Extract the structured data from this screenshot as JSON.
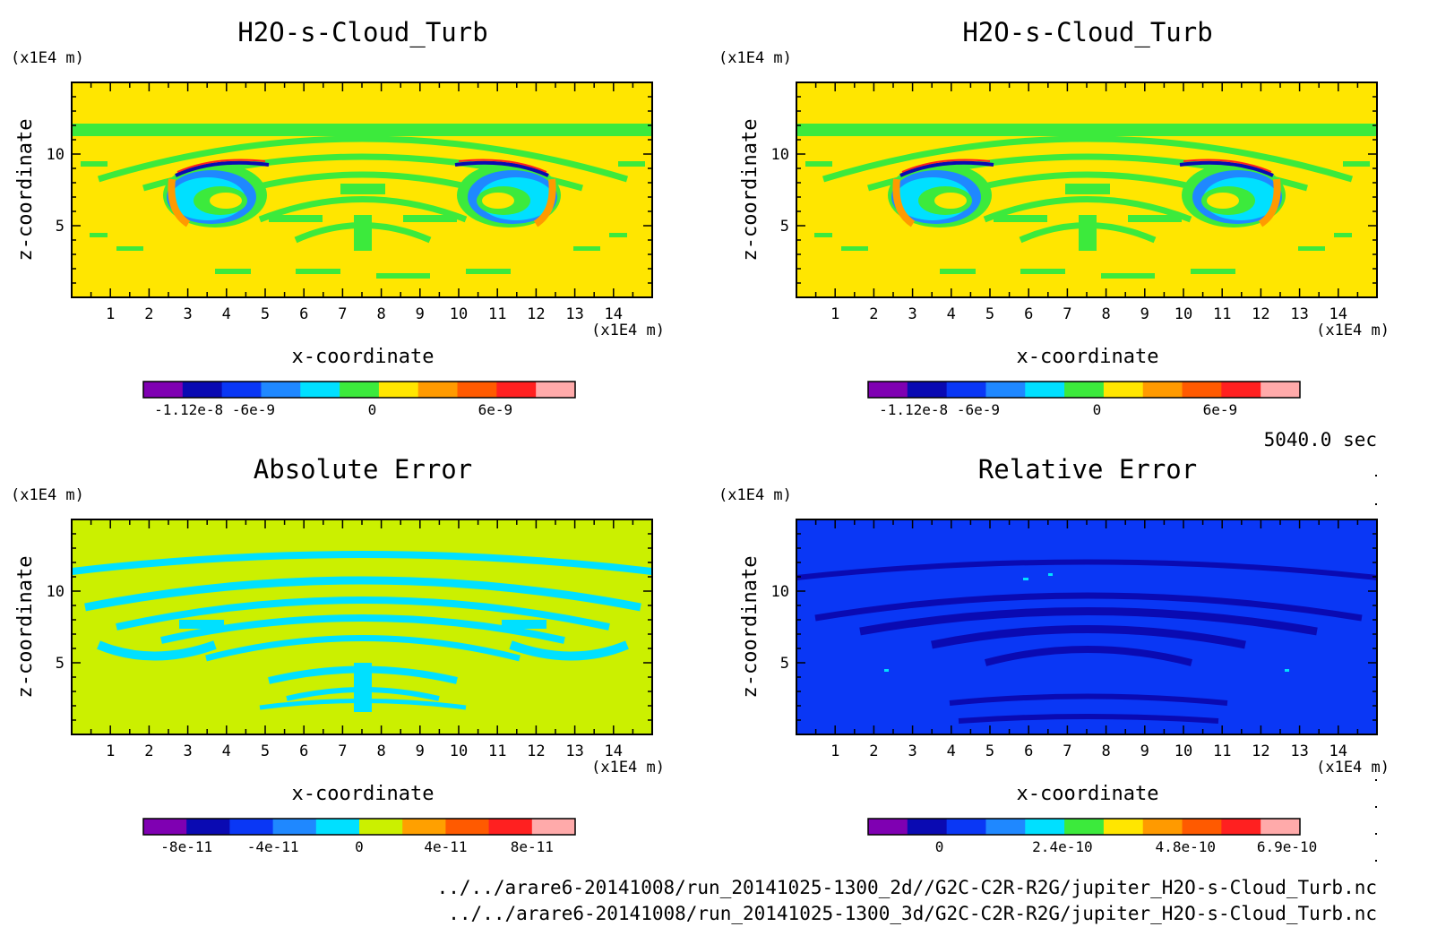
{
  "time_label": "5040.0 sec",
  "files": [
    "../../arare6-20141008/run_20141025-1300_2d//G2C-C2R-R2G/jupiter_H2O-s-Cloud_Turb.nc",
    "../../arare6-20141008/run_20141025-1300_3d/G2C-C2R-R2G/jupiter_H2O-s-Cloud_Turb.nc"
  ],
  "chart_data": [
    {
      "type": "heatmap",
      "title": "H2O-s-Cloud_Turb",
      "xlabel": "x-coordinate",
      "ylabel": "z-coordinate",
      "x_unit": "(x1E4 m)",
      "y_unit": "(x1E4 m)",
      "xlim": [
        0,
        15
      ],
      "ylim": [
        0,
        15
      ],
      "x_ticks": [
        1,
        2,
        3,
        4,
        5,
        6,
        7,
        8,
        9,
        10,
        11,
        12,
        13,
        14
      ],
      "y_ticks": [
        5,
        10
      ],
      "background_color": "#ffe600",
      "colorbar": {
        "colors": [
          "#7f00b2",
          "#0a0ab2",
          "#0a37f5",
          "#1f88ff",
          "#00e0ff",
          "#3cea3c",
          "#ffe600",
          "#ff9a00",
          "#ff5a00",
          "#ff2020",
          "#ffaaaa"
        ],
        "tick_labels": [
          "-1.12e-8",
          "-6e-9",
          "0",
          "6e-9"
        ]
      }
    },
    {
      "type": "heatmap",
      "title": "H2O-s-Cloud_Turb",
      "xlabel": "x-coordinate",
      "ylabel": "z-coordinate",
      "x_unit": "(x1E4 m)",
      "y_unit": "(x1E4 m)",
      "xlim": [
        0,
        15
      ],
      "ylim": [
        0,
        15
      ],
      "x_ticks": [
        1,
        2,
        3,
        4,
        5,
        6,
        7,
        8,
        9,
        10,
        11,
        12,
        13,
        14
      ],
      "y_ticks": [
        5,
        10
      ],
      "background_color": "#ffe600",
      "colorbar": {
        "colors": [
          "#7f00b2",
          "#0a0ab2",
          "#0a37f5",
          "#1f88ff",
          "#00e0ff",
          "#3cea3c",
          "#ffe600",
          "#ff9a00",
          "#ff5a00",
          "#ff2020",
          "#ffaaaa"
        ],
        "tick_labels": [
          "-1.12e-8",
          "-6e-9",
          "0",
          "6e-9"
        ]
      }
    },
    {
      "type": "heatmap",
      "title": "Absolute Error",
      "xlabel": "x-coordinate",
      "ylabel": "z-coordinate",
      "x_unit": "(x1E4 m)",
      "y_unit": "(x1E4 m)",
      "xlim": [
        0,
        15
      ],
      "ylim": [
        0,
        15
      ],
      "x_ticks": [
        1,
        2,
        3,
        4,
        5,
        6,
        7,
        8,
        9,
        10,
        11,
        12,
        13,
        14
      ],
      "y_ticks": [
        5,
        10
      ],
      "background_color": "#cbf000",
      "colorbar": {
        "colors": [
          "#7f00b2",
          "#0a0ab2",
          "#0a37f5",
          "#1f88ff",
          "#00e0ff",
          "#cbf000",
          "#ffa000",
          "#ff5a00",
          "#ff2020",
          "#ffaaaa"
        ],
        "tick_labels": [
          "-8e-11",
          "-4e-11",
          "0",
          "4e-11",
          "8e-11"
        ]
      }
    },
    {
      "type": "heatmap",
      "title": "Relative Error",
      "xlabel": "x-coordinate",
      "ylabel": "z-coordinate",
      "x_unit": "(x1E4 m)",
      "y_unit": "(x1E4 m)",
      "xlim": [
        0,
        15
      ],
      "ylim": [
        0,
        15
      ],
      "x_ticks": [
        1,
        2,
        3,
        4,
        5,
        6,
        7,
        8,
        9,
        10,
        11,
        12,
        13,
        14
      ],
      "y_ticks": [
        5,
        10
      ],
      "background_color": "#0a37f5",
      "colorbar": {
        "colors": [
          "#7f00b2",
          "#0a0ab2",
          "#0a37f5",
          "#1f88ff",
          "#00e0ff",
          "#3cea3c",
          "#ffe600",
          "#ff9a00",
          "#ff5a00",
          "#ff2020",
          "#ffaaaa"
        ],
        "tick_labels": [
          "0",
          "2.4e-10",
          "4.8e-10",
          "6.9e-10"
        ]
      }
    }
  ]
}
